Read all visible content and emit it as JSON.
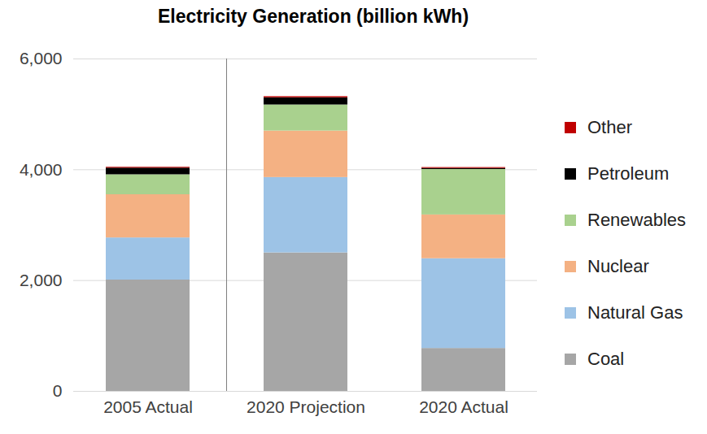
{
  "chart_data": {
    "type": "bar",
    "title": "Electricity Generation (billion kWh)",
    "categories": [
      "2005 Actual",
      "2020 Projection",
      "2020 Actual"
    ],
    "stacked": true,
    "grid": true,
    "legend": "right",
    "ylim": [
      0,
      6000
    ],
    "yticks": [
      0,
      {
        "value": 2000,
        "label": "2,000"
      },
      {
        "value": 4000,
        "label": "4,000"
      },
      {
        "value": 6000,
        "label": "6,000"
      }
    ],
    "series": [
      {
        "name": "Coal",
        "color": "#a6a6a6",
        "values": [
          2010,
          2500,
          775
        ]
      },
      {
        "name": "Natural Gas",
        "color": "#9dc3e6",
        "values": [
          760,
          1360,
          1620
        ]
      },
      {
        "name": "Nuclear",
        "color": "#f4b183",
        "values": [
          780,
          840,
          790
        ]
      },
      {
        "name": "Renewables",
        "color": "#a9d18e",
        "values": [
          360,
          470,
          820
        ]
      },
      {
        "name": "Petroleum",
        "color": "#000000",
        "values": [
          120,
          130,
          20
        ]
      },
      {
        "name": "Other",
        "color": "#c00000",
        "values": [
          15,
          20,
          15
        ]
      }
    ]
  }
}
